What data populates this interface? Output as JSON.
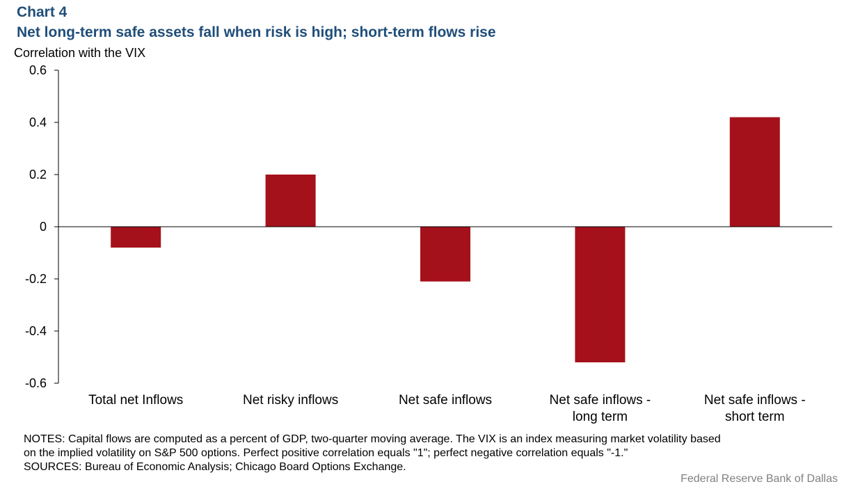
{
  "header": {
    "chart_label": "Chart 4",
    "title": "Net long-term safe assets fall when risk is high; short-term flows rise",
    "unit_label": "Correlation with the VIX"
  },
  "colors": {
    "bar": "#a5111b",
    "title": "#1f4e79",
    "axis": "#000000",
    "credit": "#808080"
  },
  "chart_data": {
    "type": "bar",
    "categories": [
      [
        "Total net Inflows"
      ],
      [
        "Net risky inflows"
      ],
      [
        "Net safe inflows"
      ],
      [
        "Net safe inflows -",
        "long term"
      ],
      [
        "Net safe inflows -",
        "short term"
      ]
    ],
    "values": [
      -0.08,
      0.2,
      -0.21,
      -0.52,
      0.42
    ],
    "ylim": [
      -0.6,
      0.6
    ],
    "yticks": [
      0.6,
      0.4,
      0.2,
      0,
      -0.2,
      -0.4,
      -0.6
    ],
    "ytick_labels": [
      "0.6",
      "0.4",
      "0.2",
      "0",
      "-0.2",
      "-0.4",
      "-0.6"
    ],
    "grid": false,
    "legend": "none"
  },
  "notes": {
    "line1": "NOTES: Capital flows are computed as a percent of GDP, two-quarter moving average. The VIX is an index measuring market volatility based",
    "line2": "on the implied volatility on S&P 500 options. Perfect positive correlation equals \"1\"; perfect negative correlation equals \"-1.\"",
    "line3": "SOURCES: Bureau of Economic Analysis; Chicago Board Options Exchange."
  },
  "credit": "Federal Reserve Bank of Dallas"
}
